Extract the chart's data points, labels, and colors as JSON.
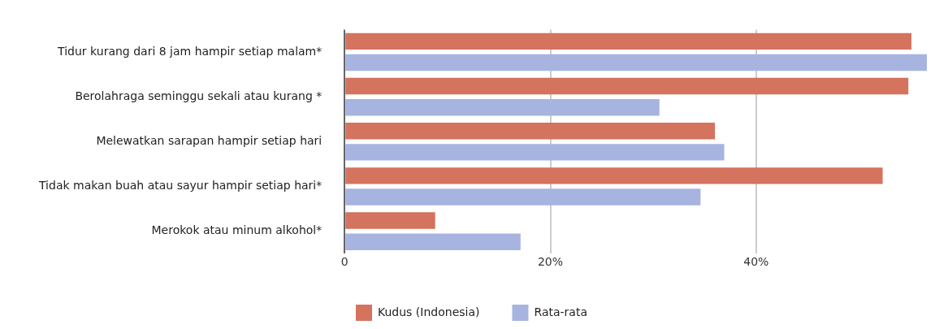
{
  "chart_data": {
    "type": "bar",
    "orientation": "horizontal",
    "categories": [
      "Tidur kurang dari 8 jam hampir setiap malam*",
      "Berolahraga seminggu sekali atau kurang *",
      "Melewatkan sarapan hampir setiap hari",
      "Tidak makan buah atau sayur hampir setiap hari*",
      "Merokok atau minum alkohol*"
    ],
    "series": [
      {
        "name": "Kudus (Indonesia)",
        "color": "#d4735e",
        "values": [
          55.1,
          54.8,
          36.0,
          52.3,
          8.8
        ]
      },
      {
        "name": "Rata-rata",
        "color": "#a7b4e0",
        "values": [
          56.6,
          30.6,
          36.9,
          34.6,
          17.1
        ]
      }
    ],
    "xlim": [
      0,
      56.6
    ],
    "xticks": [
      0,
      {
        "value": 20,
        "label": "20%"
      },
      {
        "value": 40,
        "label": "40%"
      }
    ],
    "grid": "x",
    "legend": "bottom"
  }
}
